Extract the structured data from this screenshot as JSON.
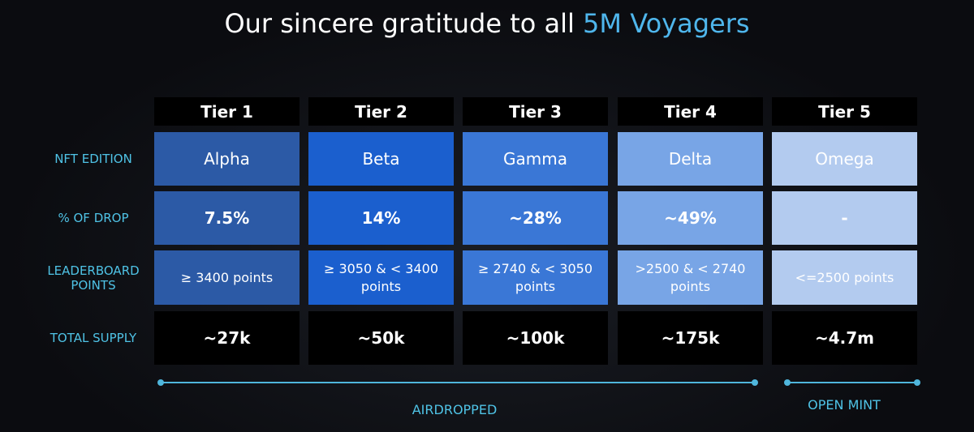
{
  "title": {
    "text": "Our sincere gratitude to all",
    "highlight": "5M Voyagers"
  },
  "table": {
    "columns": [
      "Tier 1",
      "Tier 2",
      "Tier 3",
      "Tier 4",
      "Tier 5"
    ],
    "rows": [
      {
        "label": "NFT EDITION",
        "cells": [
          "Alpha",
          "Beta",
          "Gamma",
          "Delta",
          "Omega"
        ]
      },
      {
        "label": "% OF DROP",
        "cells": [
          "7.5%",
          "14%",
          "~28%",
          "~49%",
          "-"
        ]
      },
      {
        "label": "LEADERBOARD POINTS",
        "cells": [
          "≥ 3400 points",
          "≥ 3050 & < 3400 points",
          "≥ 2740 & < 3050 points",
          ">2500 & < 2740 points",
          "<=2500 points"
        ]
      },
      {
        "label": "TOTAL SUPPLY",
        "cells": [
          "~27k",
          "~50k",
          "~100k",
          "~175k",
          "~4.7m"
        ]
      }
    ]
  },
  "footer": {
    "airdropped": "AIRDROPPED",
    "open_mint": "OPEN MINT"
  }
}
